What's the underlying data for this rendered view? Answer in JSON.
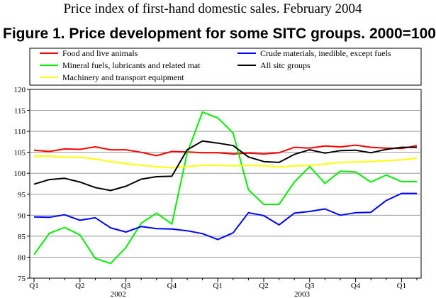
{
  "header": {
    "supertitle": "Price index of first-hand domestic sales. February 2004",
    "title": "Figure 1. Price development for some SITC groups. 2000=100"
  },
  "chart_data": {
    "type": "line",
    "title": "Figure 1. Price development for some SITC groups. 2000=100",
    "xlabel": "",
    "ylabel": "",
    "ylim": [
      75,
      120
    ],
    "yticks": [
      75,
      80,
      85,
      90,
      95,
      100,
      105,
      110,
      115,
      120
    ],
    "grid": true,
    "legend_position": "top",
    "x": [
      "2002-01",
      "2002-02",
      "2002-03",
      "2002-04",
      "2002-05",
      "2002-06",
      "2002-07",
      "2002-08",
      "2002-09",
      "2002-10",
      "2002-11",
      "2002-12",
      "2003-01",
      "2003-02",
      "2003-03",
      "2003-04",
      "2003-05",
      "2003-06",
      "2003-07",
      "2003-08",
      "2003-09",
      "2003-10",
      "2003-11",
      "2003-12",
      "2004-01",
      "2004-02"
    ],
    "quarter_labels": [
      "Q1",
      "Q2",
      "Q3",
      "Q4",
      "Q1",
      "Q2",
      "Q3",
      "Q4",
      "Q1"
    ],
    "year_labels": [
      {
        "label": "2002",
        "month_index": 5.5
      },
      {
        "label": "2003",
        "month_index": 17.5
      }
    ],
    "series": [
      {
        "name": "Food and live animals",
        "color": "#ff0000",
        "values": [
          105.5,
          105.2,
          105.8,
          105.7,
          106.3,
          105.6,
          105.6,
          105.0,
          104.2,
          105.2,
          105.1,
          104.9,
          104.9,
          104.6,
          104.8,
          104.6,
          104.9,
          106.2,
          106.0,
          106.5,
          106.3,
          106.7,
          106.2,
          106.0,
          105.9,
          106.6
        ]
      },
      {
        "name": "Mineral fuels, lubricants and related mat",
        "color": "#00ee00",
        "values": [
          80.6,
          85.7,
          87.1,
          85.3,
          79.7,
          78.5,
          82.3,
          88.1,
          90.5,
          87.9,
          104.8,
          114.6,
          113.2,
          109.6,
          96.1,
          92.6,
          92.6,
          97.9,
          101.6,
          97.6,
          100.5,
          100.3,
          97.9,
          99.6,
          98.0,
          98.0
        ]
      },
      {
        "name": "Machinery and transport equipment",
        "color": "#ffff00",
        "values": [
          104.1,
          104.1,
          103.9,
          103.8,
          103.4,
          102.8,
          102.3,
          101.9,
          101.6,
          101.3,
          101.6,
          101.9,
          101.9,
          101.8,
          101.9,
          101.8,
          101.5,
          101.8,
          101.9,
          102.2,
          102.6,
          102.7,
          102.8,
          103.0,
          103.2,
          103.6
        ]
      },
      {
        "name": "Crude materials, inedible, except fuels",
        "color": "#0000ff",
        "values": [
          89.6,
          89.5,
          90.1,
          88.8,
          89.4,
          87.0,
          86.0,
          87.3,
          86.8,
          86.7,
          86.3,
          85.6,
          84.2,
          85.8,
          90.6,
          89.9,
          87.7,
          90.5,
          90.9,
          91.5,
          90.0,
          90.6,
          90.7,
          93.5,
          95.2,
          95.2
        ]
      },
      {
        "name": "All sitc groups",
        "color": "#000000",
        "values": [
          97.4,
          98.5,
          98.8,
          97.9,
          96.6,
          95.9,
          96.9,
          98.6,
          99.2,
          99.3,
          105.6,
          107.7,
          107.2,
          106.6,
          103.9,
          102.8,
          102.6,
          104.5,
          105.6,
          104.8,
          105.4,
          105.5,
          104.9,
          105.7,
          106.2,
          106.2
        ]
      }
    ],
    "legend_order": [
      0,
      3,
      1,
      4,
      2
    ]
  }
}
